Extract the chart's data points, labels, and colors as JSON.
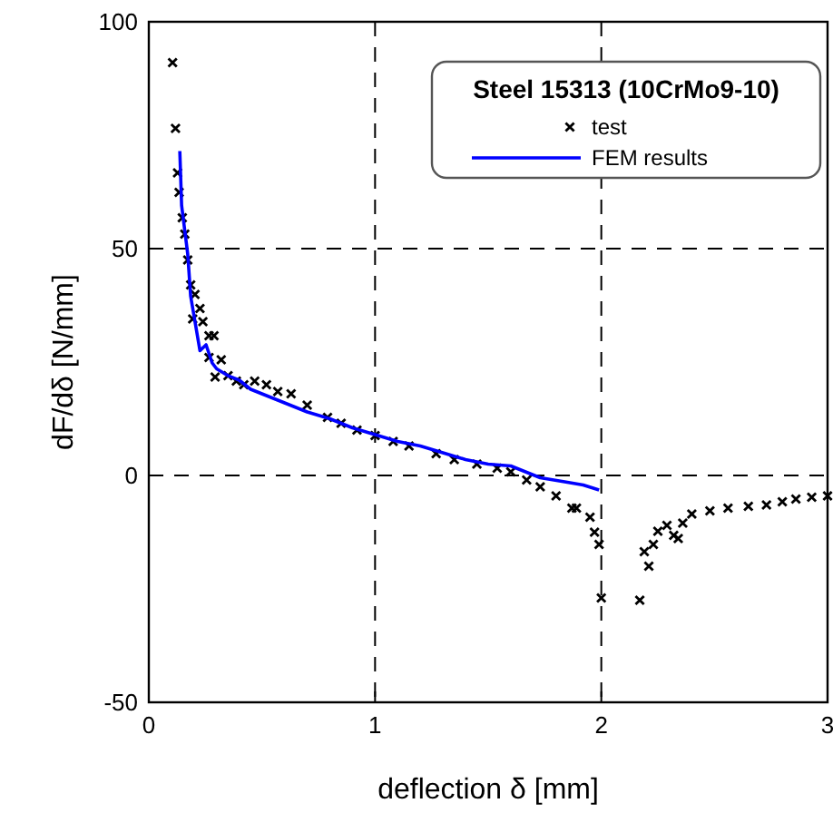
{
  "chart_data": {
    "type": "scatter",
    "xlabel": "deflection δ [mm]",
    "ylabel": "dF/dδ [N/mm]",
    "legend_title": "Steel 15313 (10CrMo9-10)",
    "xlim": [
      0,
      3
    ],
    "ylim": [
      -50,
      100
    ],
    "xticks": [
      0,
      1,
      2,
      3
    ],
    "yticks": [
      -50,
      0,
      50,
      100
    ],
    "grid": true,
    "legend": "top right",
    "series": [
      {
        "name": "test",
        "marker": "cross",
        "color": "#000000",
        "x": [
          0.105,
          0.118,
          0.127,
          0.134,
          0.148,
          0.159,
          0.172,
          0.185,
          0.194,
          0.204,
          0.226,
          0.239,
          0.266,
          0.288,
          0.266,
          0.293,
          0.32,
          0.35,
          0.387,
          0.42,
          0.468,
          0.52,
          0.57,
          0.629,
          0.7,
          0.79,
          0.85,
          0.92,
          1.0,
          1.08,
          1.15,
          1.27,
          1.35,
          1.45,
          1.54,
          1.6,
          1.67,
          1.73,
          1.8,
          1.87,
          1.89,
          1.95,
          1.97,
          1.99,
          2.0,
          2.17,
          2.19,
          2.21,
          2.23,
          2.25,
          2.29,
          2.32,
          2.34,
          2.36,
          2.4,
          2.48,
          2.56,
          2.65,
          2.73,
          2.8,
          2.86,
          2.93,
          3.0
        ],
        "values": [
          91,
          76.5,
          66.7,
          62.4,
          56.8,
          53.2,
          47.5,
          42,
          34.5,
          39.9,
          36.8,
          33.9,
          30.8,
          30.8,
          26,
          21.7,
          25.5,
          22,
          20.8,
          20,
          20.8,
          20,
          18.5,
          18,
          15.5,
          12.8,
          11.5,
          10,
          8.8,
          7.5,
          6.5,
          4.8,
          3.5,
          2.5,
          1.6,
          0.8,
          -1,
          -2.5,
          -4.5,
          -7.2,
          -7.2,
          -9.2,
          -12.5,
          -15.2,
          -27,
          -27.5,
          -16.8,
          -20,
          -15.2,
          -12.3,
          -11,
          -13.2,
          -13.9,
          -10.5,
          -8.5,
          -7.8,
          -7.2,
          -6.8,
          -6.5,
          -5.8,
          -5.2,
          -4.8,
          -4.5
        ]
      },
      {
        "name": "FEM results",
        "type": "line",
        "marker": "none",
        "line_style": "solid",
        "color": "#0000ff",
        "x": [
          0.137,
          0.145,
          0.172,
          0.185,
          0.226,
          0.253,
          0.28,
          0.3,
          0.35,
          0.4,
          0.45,
          0.5,
          0.55,
          0.6,
          0.7,
          0.8,
          0.9,
          1.0,
          1.1,
          1.2,
          1.3,
          1.4,
          1.5,
          1.6,
          1.73,
          1.85,
          1.92,
          1.99
        ],
        "values": [
          71.5,
          59.5,
          48.8,
          39.5,
          27.5,
          28.8,
          24.8,
          23.5,
          22,
          21,
          19,
          18,
          17,
          16,
          14,
          12.5,
          10.5,
          9,
          7.5,
          6.5,
          5,
          3.5,
          2.5,
          2.1,
          -0.5,
          -1.5,
          -2.1,
          -3.2
        ]
      }
    ]
  }
}
